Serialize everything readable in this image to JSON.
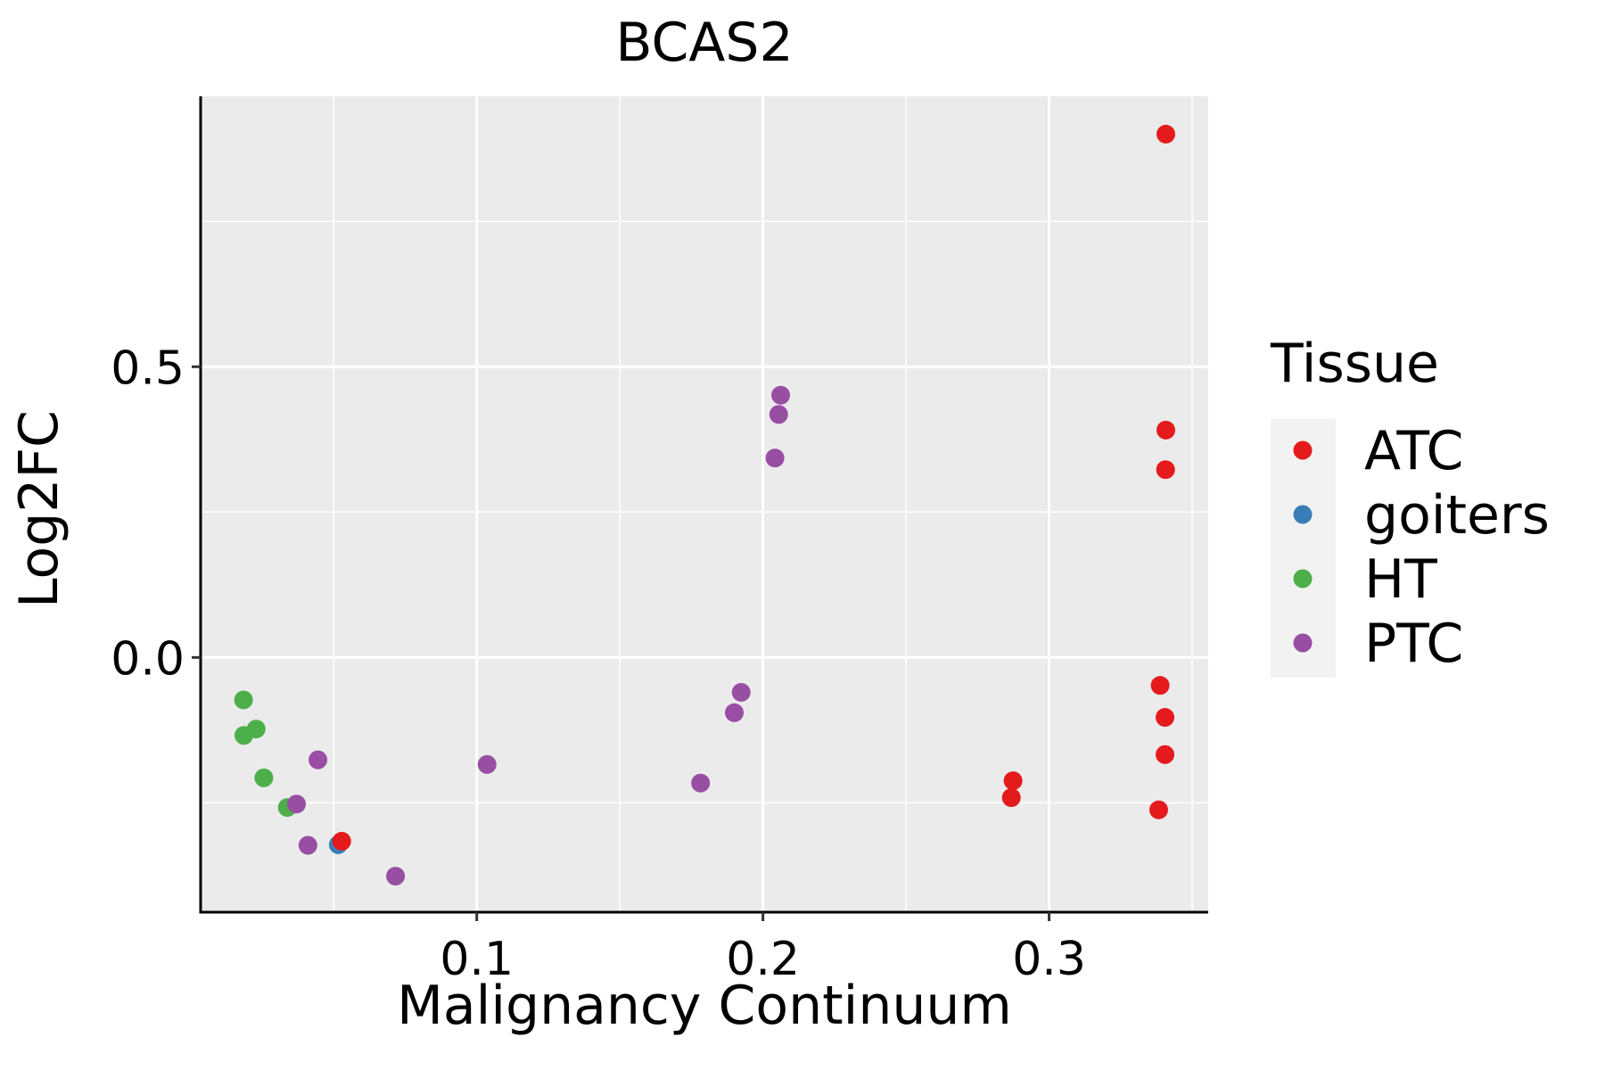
{
  "chart_data": {
    "type": "scatter",
    "title": "BCAS2",
    "xlabel": "Malignancy Continuum",
    "ylabel": "Log2FC",
    "xlim": [
      0.0035,
      0.3556
    ],
    "ylim": [
      -0.438,
      0.965
    ],
    "x_ticks": [
      0.1,
      0.2,
      0.3
    ],
    "x_tick_labels": [
      "0.1",
      "0.2",
      "0.3"
    ],
    "x_minor_ticks": [
      0.05,
      0.15,
      0.25,
      0.35
    ],
    "y_ticks": [
      0.0,
      0.5
    ],
    "y_tick_labels": [
      "0.0",
      "0.5"
    ],
    "y_minor_ticks": [
      -0.25,
      0.25,
      0.75
    ],
    "grid": true,
    "legend": {
      "title": "Tissue",
      "position": "right",
      "entries": [
        {
          "label": "ATC",
          "color": "#E41A1C"
        },
        {
          "label": "goiters",
          "color": "#377EB8"
        },
        {
          "label": "HT",
          "color": "#4DAF4A"
        },
        {
          "label": "PTC",
          "color": "#984EA3"
        }
      ]
    },
    "series": [
      {
        "name": "HT",
        "color": "#4DAF4A",
        "points": [
          {
            "x": 0.0185,
            "y": -0.073
          },
          {
            "x": 0.0186,
            "y": -0.134
          },
          {
            "x": 0.0229,
            "y": -0.123
          },
          {
            "x": 0.0256,
            "y": -0.207
          },
          {
            "x": 0.0338,
            "y": -0.258
          }
        ]
      },
      {
        "name": "goiters",
        "color": "#377EB8",
        "points": [
          {
            "x": 0.0516,
            "y": -0.322
          }
        ]
      },
      {
        "name": "PTC",
        "color": "#984EA3",
        "points": [
          {
            "x": 0.037,
            "y": -0.252
          },
          {
            "x": 0.041,
            "y": -0.323
          },
          {
            "x": 0.0445,
            "y": -0.176
          },
          {
            "x": 0.0716,
            "y": -0.376
          },
          {
            "x": 0.1036,
            "y": -0.184
          },
          {
            "x": 0.1782,
            "y": -0.216
          },
          {
            "x": 0.19,
            "y": -0.095
          },
          {
            "x": 0.1924,
            "y": -0.06
          },
          {
            "x": 0.2042,
            "y": 0.343
          },
          {
            "x": 0.2055,
            "y": 0.418
          },
          {
            "x": 0.2062,
            "y": 0.451
          }
        ]
      },
      {
        "name": "ATC",
        "color": "#E41A1C",
        "points": [
          {
            "x": 0.0528,
            "y": -0.316
          },
          {
            "x": 0.2868,
            "y": -0.241
          },
          {
            "x": 0.2874,
            "y": -0.212
          },
          {
            "x": 0.3383,
            "y": -0.262
          },
          {
            "x": 0.3388,
            "y": -0.048
          },
          {
            "x": 0.3405,
            "y": -0.103
          },
          {
            "x": 0.3405,
            "y": -0.167
          },
          {
            "x": 0.3407,
            "y": 0.323
          },
          {
            "x": 0.3408,
            "y": 0.391
          },
          {
            "x": 0.3408,
            "y": 0.9
          }
        ]
      }
    ]
  }
}
